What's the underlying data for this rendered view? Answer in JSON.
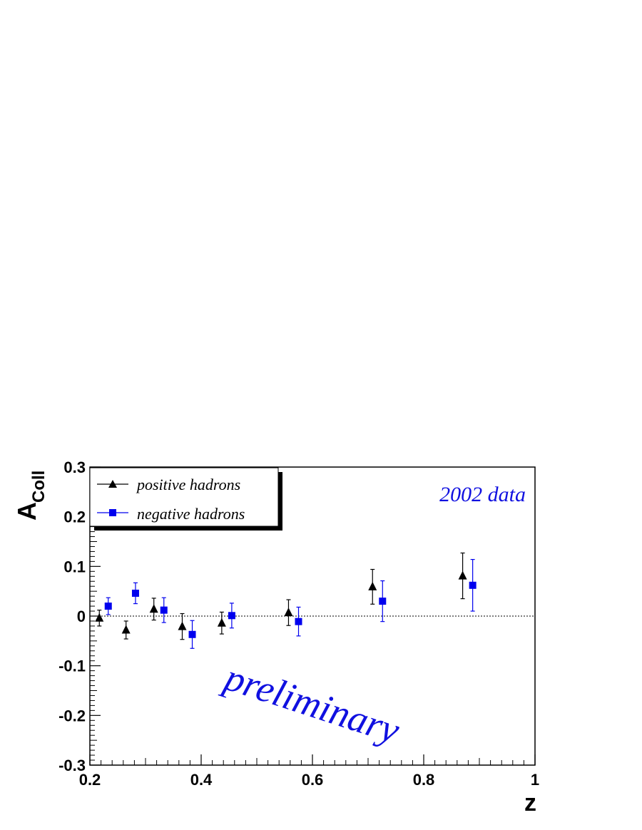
{
  "chart_data": {
    "type": "scatter",
    "xlabel": "z",
    "ylabel": "A",
    "ylabel_sub": "Coll",
    "xlim": [
      0.2,
      1.0
    ],
    "ylim": [
      -0.3,
      0.3
    ],
    "x_ticks": [
      "0.2",
      "0.4",
      "0.6",
      "0.8",
      "1"
    ],
    "y_ticks": [
      "-0.3",
      "-0.2",
      "-0.1",
      "0",
      "0.1",
      "0.2",
      "0.3"
    ],
    "reference_line": 0,
    "legend_position": "top-left",
    "annotations": [
      "2002 data",
      "preliminary"
    ],
    "series": [
      {
        "name": "positive hadrons",
        "marker": "triangle",
        "color": "#000000",
        "x": [
          0.217,
          0.265,
          0.315,
          0.366,
          0.437,
          0.557,
          0.708,
          0.87
        ],
        "y": [
          -0.004,
          -0.028,
          0.014,
          -0.021,
          -0.014,
          0.007,
          0.059,
          0.081
        ],
        "err": [
          0.016,
          0.018,
          0.022,
          0.026,
          0.022,
          0.026,
          0.035,
          0.046
        ]
      },
      {
        "name": "negative hadrons",
        "marker": "square",
        "color": "#0000ee",
        "x": [
          0.233,
          0.282,
          0.333,
          0.384,
          0.455,
          0.575,
          0.726,
          0.888
        ],
        "y": [
          0.02,
          0.046,
          0.012,
          -0.037,
          0.001,
          -0.011,
          0.03,
          0.062
        ],
        "err": [
          0.017,
          0.021,
          0.025,
          0.028,
          0.025,
          0.029,
          0.041,
          0.052
        ]
      }
    ]
  }
}
